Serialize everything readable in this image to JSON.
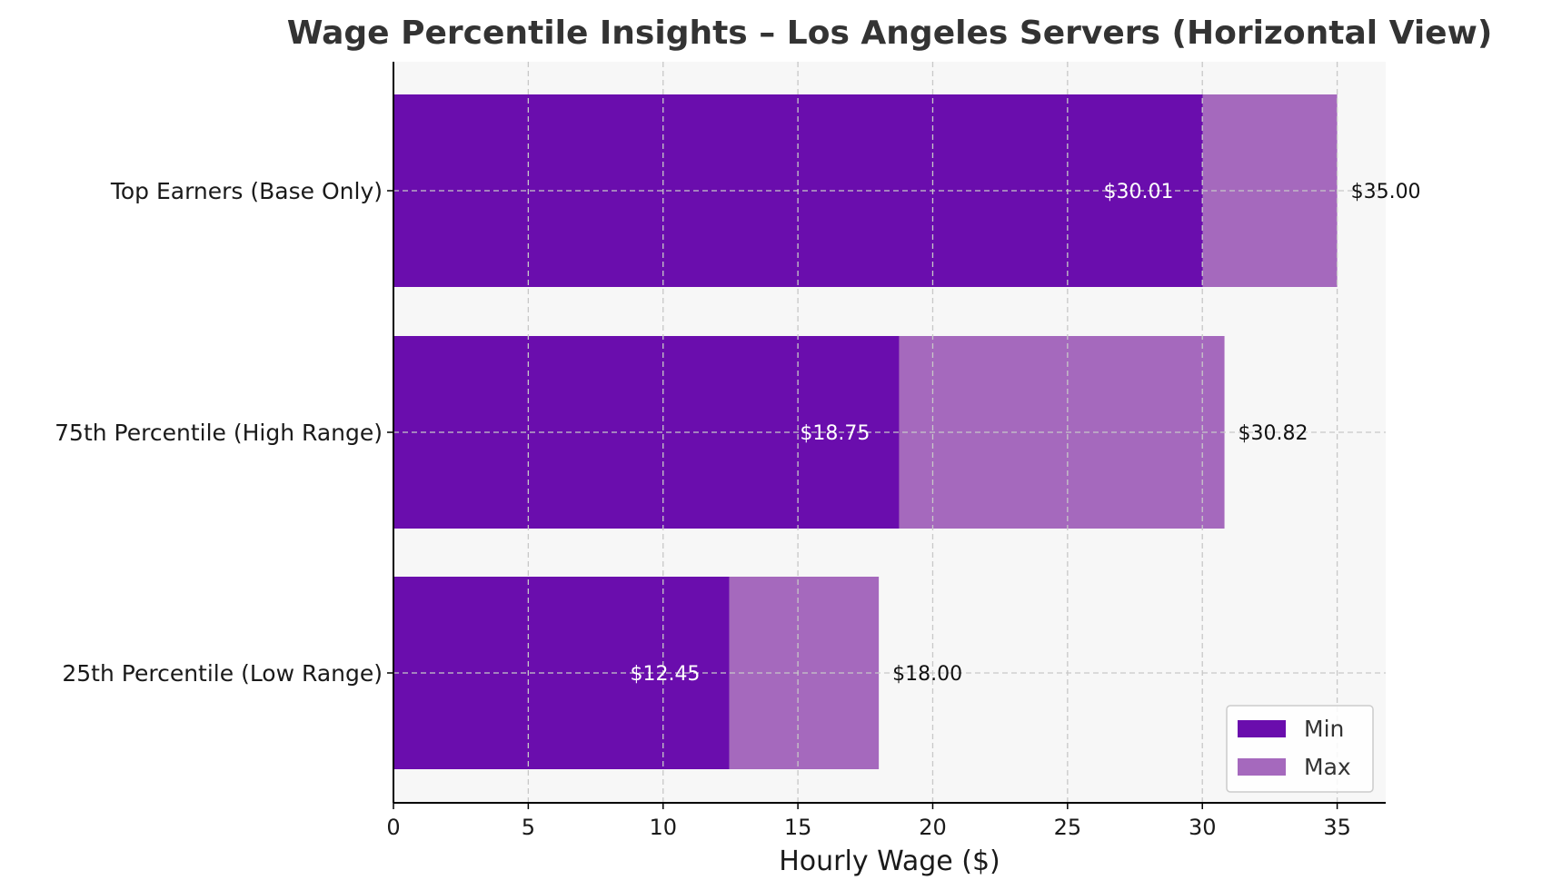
{
  "chart_data": {
    "type": "bar",
    "orientation": "horizontal",
    "stacked": false,
    "title": "Wage Percentile Insights – Los Angeles Servers (Horizontal View)",
    "xlabel": "Hourly Wage ($)",
    "ylabel": "",
    "xlim": [
      0,
      36.8
    ],
    "xticks": [
      0,
      5,
      10,
      15,
      20,
      25,
      30,
      35
    ],
    "grid": true,
    "legend_position": "bottom-right",
    "categories": [
      "Top Earners (Base Only)",
      "75th Percentile (High Range)",
      "25th Percentile (Low Range)"
    ],
    "series": [
      {
        "name": "Min",
        "color": "#6a0dad",
        "values": [
          30.01,
          18.75,
          12.45
        ],
        "labels": [
          "$30.01",
          "$18.75",
          "$12.45"
        ]
      },
      {
        "name": "Max",
        "color": "#a569bd",
        "values": [
          35.0,
          30.82,
          18.0
        ],
        "labels": [
          "$35.00",
          "$30.82",
          "$18.00"
        ]
      }
    ]
  },
  "colors": {
    "plot_background": "#f7f7f7",
    "axis_color": "#000000",
    "grid_color": "#c8c8c8"
  }
}
